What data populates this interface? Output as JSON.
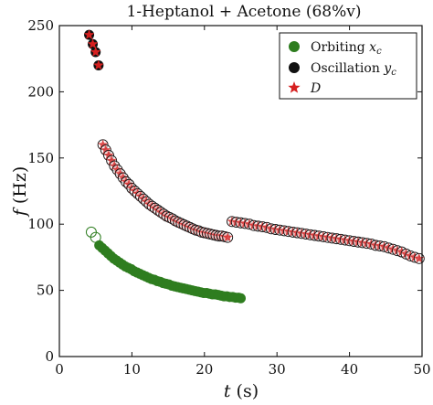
{
  "chart_data": {
    "type": "scatter",
    "title": "1-Heptanol + Acetone (68%v)",
    "xlabel": "t (s)",
    "ylabel": "f (Hz)",
    "xlim": [
      0,
      50
    ],
    "ylim": [
      0,
      250
    ],
    "xticks": [
      0,
      10,
      20,
      30,
      40,
      50
    ],
    "yticks": [
      0,
      50,
      100,
      150,
      200,
      250
    ],
    "grid": false,
    "legend_position": "top-right",
    "series": [
      {
        "name": "Orbiting x_c",
        "color": "#2e7d1f",
        "marker": "circle",
        "open_points": [
          [
            4.4,
            94
          ],
          [
            5.0,
            90
          ]
        ],
        "points": [
          [
            5.5,
            84
          ],
          [
            5.9,
            82
          ],
          [
            6.3,
            80
          ],
          [
            6.7,
            78
          ],
          [
            7.1,
            76
          ],
          [
            7.5,
            74
          ],
          [
            7.9,
            72.5
          ],
          [
            8.3,
            71
          ],
          [
            8.7,
            69.5
          ],
          [
            9.1,
            68
          ],
          [
            9.5,
            67
          ],
          [
            9.9,
            66
          ],
          [
            10.3,
            64.5
          ],
          [
            10.7,
            63.5
          ],
          [
            11.1,
            62.5
          ],
          [
            11.5,
            61.5
          ],
          [
            11.9,
            60.5
          ],
          [
            12.3,
            59.5
          ],
          [
            12.7,
            58.5
          ],
          [
            13.1,
            58
          ],
          [
            13.5,
            57
          ],
          [
            13.9,
            56.5
          ],
          [
            14.3,
            55.5
          ],
          [
            14.7,
            55
          ],
          [
            15.1,
            54.5
          ],
          [
            15.5,
            53.5
          ],
          [
            15.9,
            53
          ],
          [
            16.3,
            52.5
          ],
          [
            16.7,
            52
          ],
          [
            17.1,
            51.5
          ],
          [
            17.5,
            51
          ],
          [
            17.9,
            50.5
          ],
          [
            18.3,
            50
          ],
          [
            18.7,
            49.5
          ],
          [
            19.1,
            49
          ],
          [
            19.5,
            48.5
          ],
          [
            19.9,
            48
          ],
          [
            20.3,
            48
          ],
          [
            20.7,
            47.5
          ],
          [
            21.1,
            47
          ],
          [
            21.5,
            47
          ],
          [
            21.9,
            46.5
          ],
          [
            22.3,
            46
          ],
          [
            22.7,
            45.5
          ],
          [
            23.1,
            45.5
          ],
          [
            23.5,
            45
          ],
          [
            23.9,
            45
          ],
          [
            24.3,
            44.5
          ],
          [
            24.7,
            44.5
          ],
          [
            25.0,
            44
          ]
        ]
      },
      {
        "name": "Oscillation y_c",
        "color": "#111111",
        "marker": "circle",
        "points": [
          [
            4.1,
            243
          ],
          [
            4.6,
            236
          ],
          [
            5.0,
            230
          ],
          [
            5.4,
            220
          ]
        ]
      },
      {
        "name": "D",
        "color": "#d62020",
        "marker": "star",
        "points": [
          [
            4.1,
            243
          ],
          [
            4.6,
            236
          ],
          [
            5.0,
            230
          ],
          [
            5.4,
            220
          ]
        ]
      }
    ],
    "overlay_groups": [
      {
        "note_series": [
          "Oscillation y_c",
          "D"
        ],
        "points": [
          [
            6.0,
            160
          ],
          [
            6.4,
            156
          ],
          [
            6.8,
            152
          ],
          [
            7.2,
            148
          ],
          [
            7.6,
            144
          ],
          [
            8.0,
            141
          ],
          [
            8.4,
            138
          ],
          [
            8.8,
            135
          ],
          [
            9.2,
            132
          ],
          [
            9.6,
            130
          ],
          [
            10.0,
            127
          ],
          [
            10.4,
            125
          ],
          [
            10.8,
            123
          ],
          [
            11.2,
            121
          ],
          [
            11.6,
            119
          ],
          [
            12.0,
            117
          ],
          [
            12.4,
            115
          ],
          [
            12.8,
            113.5
          ],
          [
            13.2,
            112
          ],
          [
            13.6,
            110.5
          ],
          [
            14.0,
            109
          ],
          [
            14.4,
            107.5
          ],
          [
            14.8,
            106
          ],
          [
            15.2,
            105
          ],
          [
            15.6,
            104
          ],
          [
            16.0,
            102.5
          ],
          [
            16.4,
            101.5
          ],
          [
            16.8,
            100.5
          ],
          [
            17.2,
            99.5
          ],
          [
            17.6,
            98.5
          ],
          [
            18.0,
            97.5
          ],
          [
            18.4,
            96.5
          ],
          [
            18.8,
            95.5
          ],
          [
            19.2,
            95
          ],
          [
            19.6,
            94
          ],
          [
            20.0,
            93.5
          ],
          [
            20.4,
            93
          ],
          [
            20.8,
            92.5
          ],
          [
            21.2,
            92
          ],
          [
            21.6,
            91.5
          ],
          [
            22.0,
            91
          ],
          [
            22.4,
            91
          ],
          [
            22.8,
            90.5
          ],
          [
            23.2,
            90
          ]
        ]
      },
      {
        "note_series": [
          "Oscillation y_c",
          "D"
        ],
        "points": [
          [
            23.8,
            102
          ],
          [
            24.4,
            101.5
          ],
          [
            25.0,
            101
          ],
          [
            25.6,
            100.5
          ],
          [
            26.2,
            100
          ],
          [
            26.8,
            99
          ],
          [
            27.4,
            98.5
          ],
          [
            28.0,
            98
          ],
          [
            28.6,
            97.5
          ],
          [
            29.2,
            96.5
          ],
          [
            29.8,
            96
          ],
          [
            30.4,
            95.5
          ],
          [
            31.0,
            95
          ],
          [
            31.6,
            94.5
          ],
          [
            32.2,
            94
          ],
          [
            32.8,
            93.5
          ],
          [
            33.4,
            93
          ],
          [
            34.0,
            92.5
          ],
          [
            34.6,
            92
          ],
          [
            35.2,
            91.5
          ],
          [
            35.8,
            91
          ],
          [
            36.4,
            90.5
          ],
          [
            37.0,
            90
          ],
          [
            37.6,
            89.5
          ],
          [
            38.2,
            89
          ],
          [
            38.8,
            88.5
          ],
          [
            39.4,
            88
          ],
          [
            40.0,
            87.5
          ],
          [
            40.6,
            87
          ],
          [
            41.2,
            86.5
          ],
          [
            41.8,
            86
          ],
          [
            42.4,
            85.5
          ],
          [
            43.0,
            85
          ],
          [
            43.6,
            84
          ],
          [
            44.2,
            83.5
          ],
          [
            44.8,
            83
          ],
          [
            45.4,
            82
          ],
          [
            46.0,
            81
          ],
          [
            46.6,
            80
          ],
          [
            47.2,
            79
          ],
          [
            47.8,
            77.5
          ],
          [
            48.4,
            76
          ],
          [
            49.0,
            75
          ],
          [
            49.6,
            74
          ]
        ]
      }
    ]
  }
}
